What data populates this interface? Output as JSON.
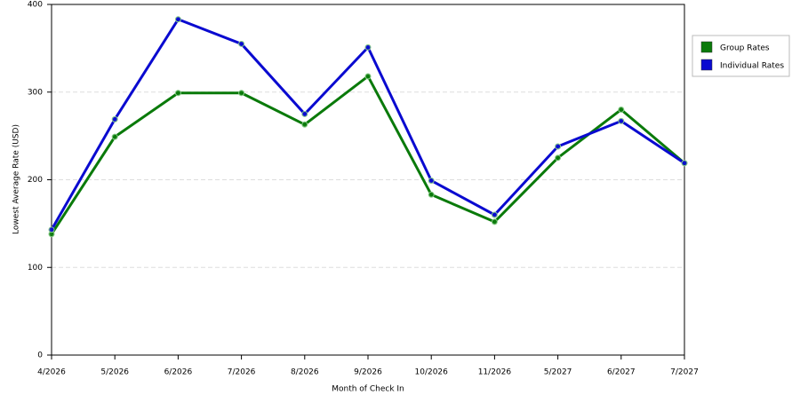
{
  "chart_data": {
    "type": "line",
    "x_label": "Month of Check In",
    "y_label": "Lowest Average Rate (USD)",
    "categories": [
      "4/2026",
      "5/2026",
      "6/2026",
      "7/2026",
      "8/2026",
      "9/2026",
      "10/2026",
      "11/2026",
      "5/2027",
      "6/2027",
      "7/2027"
    ],
    "series": [
      {
        "name": "Group Rates",
        "color": "#0a7a0a",
        "values": [
          138,
          249,
          299,
          299,
          263,
          318,
          183,
          152,
          225,
          280,
          219
        ]
      },
      {
        "name": "Individual Rates",
        "color": "#0a0ad0",
        "values": [
          143,
          269,
          383,
          355,
          275,
          351,
          199,
          160,
          238,
          267,
          219
        ]
      }
    ],
    "ylim": [
      0,
      400
    ],
    "yticks": [
      0,
      100,
      200,
      300,
      400
    ],
    "grid": true,
    "legend": "right"
  }
}
